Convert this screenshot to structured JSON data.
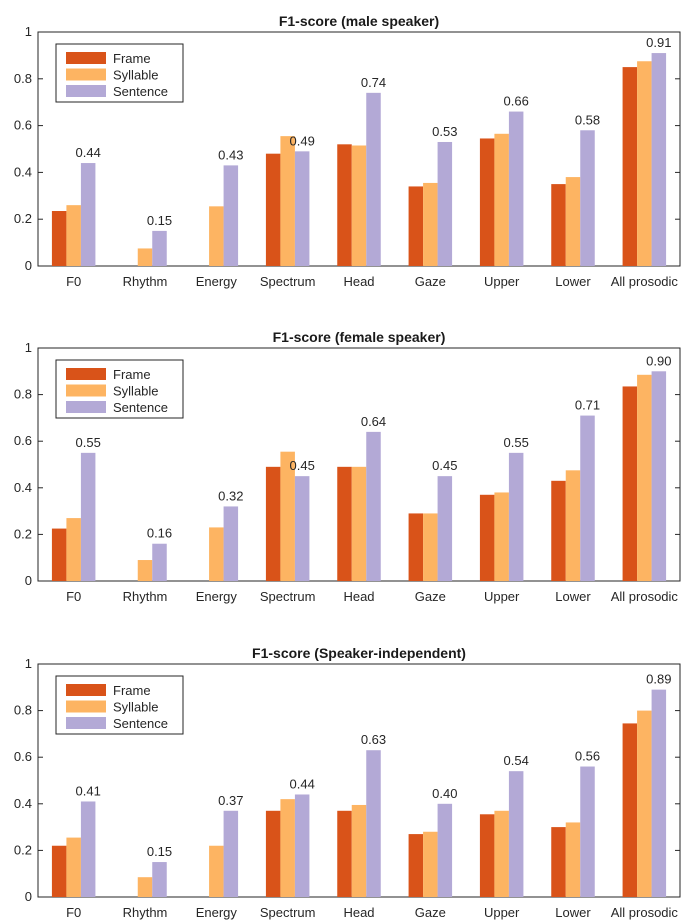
{
  "colors": {
    "Frame": "#d95319",
    "Syllable": "#fdb462",
    "Sentence": "#b3a9d6"
  },
  "chart_data": [
    {
      "type": "bar",
      "title": "F1-score (male speaker)",
      "categories": [
        "F0",
        "Rhythm",
        "Energy",
        "Spectrum",
        "Head",
        "Gaze",
        "Upper",
        "Lower",
        "All prosodic"
      ],
      "ylim": [
        0,
        1
      ],
      "yticks": [
        "0",
        "0.2",
        "0.4",
        "0.6",
        "0.8",
        "1"
      ],
      "legend": "top-left",
      "series": [
        {
          "name": "Frame",
          "values": [
            0.235,
            null,
            null,
            0.48,
            0.52,
            0.34,
            0.545,
            0.35,
            0.85
          ]
        },
        {
          "name": "Syllable",
          "values": [
            0.26,
            0.075,
            0.255,
            0.555,
            0.515,
            0.355,
            0.565,
            0.38,
            0.875
          ]
        },
        {
          "name": "Sentence",
          "values": [
            0.44,
            0.15,
            0.43,
            0.49,
            0.74,
            0.53,
            0.66,
            0.58,
            0.91
          ]
        }
      ],
      "data_labels": [
        "0.44",
        "0.15",
        "0.43",
        "0.49",
        "0.74",
        "0.53",
        "0.66",
        "0.58",
        "0.91"
      ]
    },
    {
      "type": "bar",
      "title": "F1-score (female speaker)",
      "categories": [
        "F0",
        "Rhythm",
        "Energy",
        "Spectrum",
        "Head",
        "Gaze",
        "Upper",
        "Lower",
        "All prosodic"
      ],
      "ylim": [
        0,
        1
      ],
      "yticks": [
        "0",
        "0.2",
        "0.4",
        "0.6",
        "0.8",
        "1"
      ],
      "legend": "top-left",
      "series": [
        {
          "name": "Frame",
          "values": [
            0.225,
            null,
            null,
            0.49,
            0.49,
            0.29,
            0.37,
            0.43,
            0.835
          ]
        },
        {
          "name": "Syllable",
          "values": [
            0.27,
            0.09,
            0.23,
            0.555,
            0.49,
            0.29,
            0.38,
            0.475,
            0.885
          ]
        },
        {
          "name": "Sentence",
          "values": [
            0.55,
            0.16,
            0.32,
            0.45,
            0.64,
            0.45,
            0.55,
            0.71,
            0.9
          ]
        }
      ],
      "data_labels": [
        "0.55",
        "0.16",
        "0.32",
        "0.45",
        "0.64",
        "0.45",
        "0.55",
        "0.71",
        "0.90"
      ]
    },
    {
      "type": "bar",
      "title": "F1-score (Speaker-independent)",
      "categories": [
        "F0",
        "Rhythm",
        "Energy",
        "Spectrum",
        "Head",
        "Gaze",
        "Upper",
        "Lower",
        "All prosodic"
      ],
      "ylim": [
        0,
        1
      ],
      "yticks": [
        "0",
        "0.2",
        "0.4",
        "0.6",
        "0.8",
        "1"
      ],
      "legend": "top-left",
      "series": [
        {
          "name": "Frame",
          "values": [
            0.22,
            null,
            null,
            0.37,
            0.37,
            0.27,
            0.355,
            0.3,
            0.745
          ]
        },
        {
          "name": "Syllable",
          "values": [
            0.255,
            0.085,
            0.22,
            0.42,
            0.395,
            0.28,
            0.37,
            0.32,
            0.8
          ]
        },
        {
          "name": "Sentence",
          "values": [
            0.41,
            0.15,
            0.37,
            0.44,
            0.63,
            0.4,
            0.54,
            0.56,
            0.89
          ]
        }
      ],
      "data_labels": [
        "0.41",
        "0.15",
        "0.37",
        "0.44",
        "0.63",
        "0.40",
        "0.54",
        "0.56",
        "0.89"
      ]
    }
  ]
}
